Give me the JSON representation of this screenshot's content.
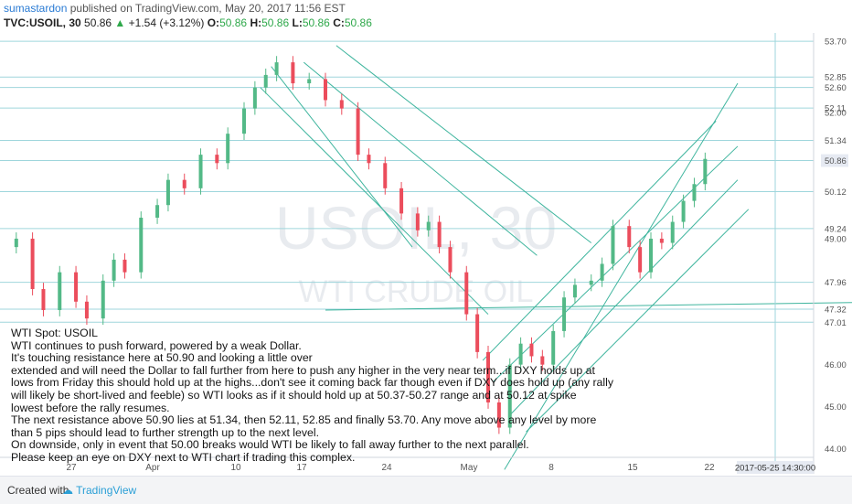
{
  "header": {
    "author": "sumastardon",
    "published": "published on TradingView.com, May 20, 2017 11:56 EST"
  },
  "symbol_bar": {
    "symbol": "TVC:USOIL, 30",
    "last": "50.86",
    "change": "+1.54 (+3.12%)",
    "o_label": "O:",
    "o": "50.86",
    "h_label": "H:",
    "h": "50.86",
    "l_label": "L:",
    "l": "50.86",
    "c_label": "C:",
    "c": "50.86"
  },
  "watermark": {
    "symbol": "USOIL, 30",
    "name": "WTI CRUDE OIL"
  },
  "note_lines": [
    "WTI Spot: USOIL",
    "WTI continues to push forward, powered by a weak Dollar.",
    "It's touching resistance here at 50.90 and looking a little over",
    "extended and will need the Dollar to fall further from here to push any higher in the very near term...if DXY holds up at",
    "lows from Friday this should hold up at the highs...don't see it coming back far though even if DXY does hold up (any rally",
    "will likely be short-lived and feeble) so WTI looks as if it should hold up at 50.37-50.27 range and at 50.12 at spike",
    "lowest before the rally resumes.",
    "The next resistance above 50.90 lies at 51.34, then 52.11, 52.85 and finally 53.70. Any move above any level by more",
    "than 5 pips should lead to further strength up to the next level.",
    "On downside, only in event that 50.00 breaks would WTI be likely to fall away further to the next parallel.",
    "Please keep an eye on DXY next to WTI chart if trading this complex."
  ],
  "footer": {
    "created": "Created with",
    "brand": "TradingView"
  },
  "colors": {
    "up": "#53b987",
    "down": "#eb4d5c",
    "level": "#9fd6dc",
    "channel": "#3fb59e",
    "axis_text": "#555555",
    "highlight_label": "#e6eaf2",
    "watermark": "#e8ebef"
  },
  "chart_data": {
    "type": "candlestick",
    "y_axis": {
      "ylim": [
        43.4,
        53.9
      ],
      "ticks": [
        "44.00",
        "45.00",
        "46.00",
        "47.01",
        "47.32",
        "47.96",
        "49.00",
        "49.24",
        "50.12",
        "50.86",
        "51.34",
        "52.00",
        "52.11",
        "52.60",
        "52.85",
        "53.70"
      ]
    },
    "x_axis": {
      "tick_labels": [
        "27",
        "Apr",
        "10",
        "17",
        "24",
        "May",
        "8",
        "15",
        "22"
      ],
      "crosshair_label": "2017-05-25 14:30:00"
    },
    "current_price": 50.86,
    "horizontal_levels": [
      53.7,
      52.85,
      52.6,
      52.11,
      51.34,
      50.86,
      50.12,
      49.24,
      47.96,
      47.32,
      47.01
    ],
    "trend_lines": [
      {
        "from": [
          6,
          47.3
        ],
        "to": [
          98,
          49.0
        ]
      },
      {
        "from": [
          6.2,
          53.6
        ],
        "to": [
          10.9,
          48.9
        ]
      },
      {
        "from": [
          5.6,
          53.2
        ],
        "to": [
          9.9,
          48.6
        ]
      },
      {
        "from": [
          4.8,
          52.6
        ],
        "to": [
          9.0,
          47.2
        ]
      },
      {
        "from": [
          5.0,
          53.1
        ],
        "to": [
          7.6,
          48.8
        ]
      },
      {
        "from": [
          8.9,
          46.1
        ],
        "to": [
          13.2,
          51.8
        ]
      },
      {
        "from": [
          9.1,
          45.6
        ],
        "to": [
          13.6,
          51.2
        ]
      },
      {
        "from": [
          9.4,
          44.8
        ],
        "to": [
          13.6,
          50.4
        ]
      },
      {
        "from": [
          9.7,
          44.4
        ],
        "to": [
          13.8,
          49.7
        ]
      },
      {
        "from": [
          9.3,
          43.5
        ],
        "to": [
          13.6,
          52.7
        ]
      }
    ],
    "price_series": [
      [
        0,
        48.8
      ],
      [
        0.3,
        49.0
      ],
      [
        0.6,
        47.8
      ],
      [
        0.8,
        47.3
      ],
      [
        1.1,
        48.2
      ],
      [
        1.4,
        47.5
      ],
      [
        1.6,
        47.1
      ],
      [
        1.9,
        48.0
      ],
      [
        2.1,
        48.5
      ],
      [
        2.3,
        48.2
      ],
      [
        2.6,
        49.5
      ],
      [
        2.9,
        49.8
      ],
      [
        3.1,
        50.4
      ],
      [
        3.4,
        50.2
      ],
      [
        3.7,
        51.0
      ],
      [
        4.0,
        50.8
      ],
      [
        4.2,
        51.5
      ],
      [
        4.5,
        52.1
      ],
      [
        4.7,
        52.6
      ],
      [
        4.9,
        52.9
      ],
      [
        5.1,
        53.2
      ],
      [
        5.4,
        52.7
      ],
      [
        5.7,
        52.8
      ],
      [
        6.0,
        52.3
      ],
      [
        6.3,
        52.1
      ],
      [
        6.6,
        51.0
      ],
      [
        6.8,
        50.8
      ],
      [
        7.1,
        50.2
      ],
      [
        7.4,
        49.6
      ],
      [
        7.7,
        49.2
      ],
      [
        7.9,
        49.4
      ],
      [
        8.1,
        48.8
      ],
      [
        8.3,
        48.2
      ],
      [
        8.6,
        47.2
      ],
      [
        8.8,
        46.3
      ],
      [
        9.0,
        45.1
      ],
      [
        9.2,
        44.5
      ],
      [
        9.4,
        46.0
      ],
      [
        9.6,
        46.5
      ],
      [
        9.8,
        46.2
      ],
      [
        10.0,
        46.0
      ],
      [
        10.2,
        46.8
      ],
      [
        10.4,
        47.6
      ],
      [
        10.6,
        47.9
      ],
      [
        10.9,
        48.0
      ],
      [
        11.1,
        48.4
      ],
      [
        11.3,
        49.3
      ],
      [
        11.6,
        48.8
      ],
      [
        11.8,
        48.2
      ],
      [
        12.0,
        49.0
      ],
      [
        12.2,
        48.9
      ],
      [
        12.4,
        49.4
      ],
      [
        12.6,
        49.9
      ],
      [
        12.8,
        50.3
      ],
      [
        13.0,
        50.9
      ]
    ]
  }
}
